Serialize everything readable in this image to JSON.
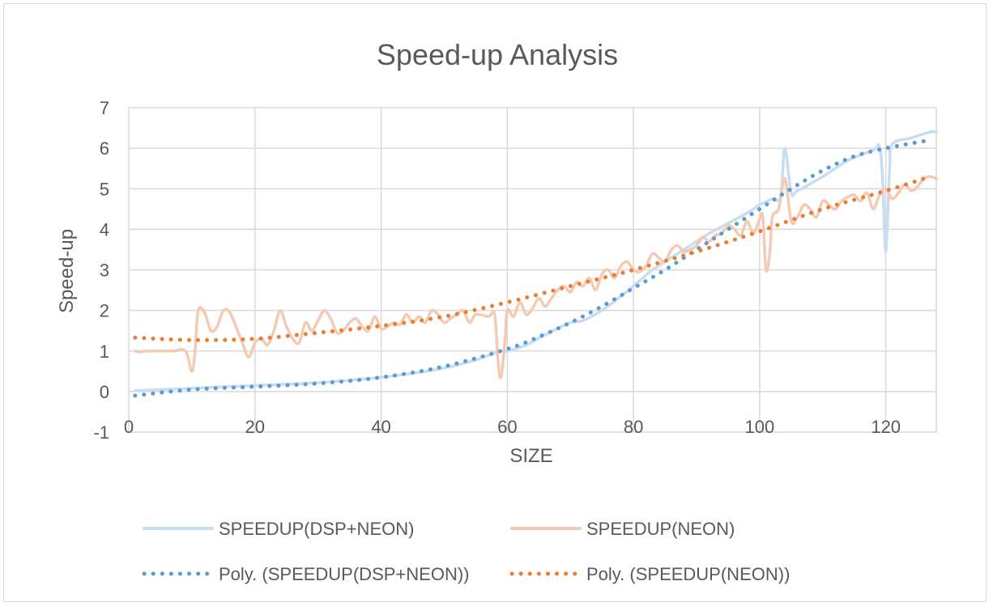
{
  "chart_data": {
    "type": "line",
    "title": "Speed-up Analysis",
    "xlabel": "SIZE",
    "ylabel": "Speed-up",
    "xlim": [
      0,
      128
    ],
    "ylim": [
      -1,
      7
    ],
    "xticks": [
      0,
      20,
      40,
      60,
      80,
      100,
      120
    ],
    "yticks": [
      -1,
      0,
      1,
      2,
      3,
      4,
      5,
      6,
      7
    ],
    "grid": true,
    "legend_position": "bottom",
    "series": [
      {
        "name": "SPEEDUP(DSP+NEON)",
        "style": "solid",
        "color": "#c9ddf0",
        "points": [
          [
            1,
            0.02
          ],
          [
            5,
            0.05
          ],
          [
            10,
            0.08
          ],
          [
            15,
            0.12
          ],
          [
            20,
            0.15
          ],
          [
            25,
            0.18
          ],
          [
            30,
            0.22
          ],
          [
            35,
            0.28
          ],
          [
            40,
            0.35
          ],
          [
            45,
            0.45
          ],
          [
            50,
            0.58
          ],
          [
            55,
            0.78
          ],
          [
            59,
            1.0
          ],
          [
            60,
            1.0
          ],
          [
            63,
            1.15
          ],
          [
            66,
            1.4
          ],
          [
            70,
            1.7
          ],
          [
            72,
            1.75
          ],
          [
            75,
            2.0
          ],
          [
            78,
            2.35
          ],
          [
            80,
            2.6
          ],
          [
            83,
            3.0
          ],
          [
            86,
            3.3
          ],
          [
            89,
            3.6
          ],
          [
            92,
            3.9
          ],
          [
            95,
            4.15
          ],
          [
            98,
            4.4
          ],
          [
            100,
            4.6
          ],
          [
            102,
            4.75
          ],
          [
            103.3,
            4.8
          ],
          [
            104,
            6.0
          ],
          [
            105,
            4.9
          ],
          [
            106,
            4.95
          ],
          [
            110,
            5.3
          ],
          [
            114,
            5.7
          ],
          [
            118,
            5.95
          ],
          [
            119,
            6.05
          ],
          [
            119.5,
            5.2
          ],
          [
            120,
            3.45
          ],
          [
            120.6,
            5.5
          ],
          [
            121,
            6.1
          ],
          [
            124,
            6.25
          ],
          [
            127,
            6.4
          ],
          [
            128,
            6.4
          ]
        ]
      },
      {
        "name": "SPEEDUP(NEON)",
        "style": "solid",
        "color": "#f3cbb3",
        "points": [
          [
            1,
            1.0
          ],
          [
            2,
            0.98
          ],
          [
            3,
            1.0
          ],
          [
            5,
            1.0
          ],
          [
            7,
            1.0
          ],
          [
            9,
            1.0
          ],
          [
            10,
            0.5
          ],
          [
            10.5,
            1.0
          ],
          [
            11,
            2.0
          ],
          [
            12,
            1.95
          ],
          [
            13,
            1.5
          ],
          [
            14,
            1.6
          ],
          [
            15,
            2.0
          ],
          [
            16,
            1.95
          ],
          [
            17,
            1.6
          ],
          [
            18,
            1.2
          ],
          [
            19,
            0.85
          ],
          [
            20,
            1.2
          ],
          [
            21,
            1.3
          ],
          [
            22,
            1.15
          ],
          [
            23,
            1.5
          ],
          [
            24,
            2.0
          ],
          [
            25,
            1.6
          ],
          [
            26,
            1.3
          ],
          [
            27,
            1.2
          ],
          [
            28,
            1.7
          ],
          [
            29,
            1.5
          ],
          [
            30,
            1.75
          ],
          [
            31,
            2.0
          ],
          [
            32,
            1.8
          ],
          [
            33,
            1.45
          ],
          [
            34,
            1.5
          ],
          [
            35,
            1.7
          ],
          [
            36,
            1.8
          ],
          [
            37,
            1.6
          ],
          [
            38,
            1.5
          ],
          [
            39,
            1.85
          ],
          [
            40,
            1.55
          ],
          [
            41,
            1.6
          ],
          [
            42,
            1.7
          ],
          [
            43,
            1.65
          ],
          [
            44,
            1.9
          ],
          [
            45,
            1.7
          ],
          [
            46,
            1.85
          ],
          [
            47,
            1.7
          ],
          [
            48,
            2.0
          ],
          [
            49,
            1.9
          ],
          [
            50,
            1.7
          ],
          [
            51,
            1.8
          ],
          [
            52,
            1.9
          ],
          [
            53,
            2.0
          ],
          [
            54,
            1.7
          ],
          [
            55,
            1.9
          ],
          [
            57,
            1.85
          ],
          [
            58,
            1.9
          ],
          [
            58.5,
            0.8
          ],
          [
            59,
            0.35
          ],
          [
            59.6,
            1.2
          ],
          [
            60,
            2.0
          ],
          [
            61,
            1.85
          ],
          [
            62,
            2.2
          ],
          [
            63,
            1.9
          ],
          [
            64,
            2.05
          ],
          [
            65,
            2.3
          ],
          [
            66,
            2.1
          ],
          [
            67,
            2.3
          ],
          [
            68,
            2.5
          ],
          [
            69,
            2.6
          ],
          [
            70,
            2.45
          ],
          [
            71,
            2.7
          ],
          [
            72,
            2.6
          ],
          [
            73,
            2.8
          ],
          [
            74,
            2.5
          ],
          [
            75,
            2.9
          ],
          [
            76,
            3.0
          ],
          [
            77,
            2.8
          ],
          [
            78,
            3.1
          ],
          [
            79,
            3.2
          ],
          [
            80,
            3.0
          ],
          [
            81,
            2.95
          ],
          [
            82,
            3.1
          ],
          [
            83,
            3.4
          ],
          [
            84,
            3.3
          ],
          [
            85,
            3.2
          ],
          [
            86,
            3.5
          ],
          [
            87,
            3.6
          ],
          [
            88,
            3.45
          ],
          [
            89,
            3.5
          ],
          [
            90,
            3.6
          ],
          [
            91,
            3.8
          ],
          [
            92,
            3.7
          ],
          [
            93,
            3.85
          ],
          [
            94,
            3.9
          ],
          [
            95,
            4.1
          ],
          [
            96,
            4.0
          ],
          [
            97,
            3.85
          ],
          [
            98,
            4.2
          ],
          [
            99,
            3.9
          ],
          [
            100,
            4.25
          ],
          [
            100.5,
            4.3
          ],
          [
            101,
            3.0
          ],
          [
            101.6,
            3.4
          ],
          [
            102,
            4.3
          ],
          [
            103,
            4.5
          ],
          [
            104,
            5.25
          ],
          [
            105,
            4.2
          ],
          [
            106,
            4.3
          ],
          [
            107,
            4.6
          ],
          [
            108,
            4.5
          ],
          [
            109,
            4.3
          ],
          [
            110,
            4.7
          ],
          [
            111,
            4.6
          ],
          [
            112,
            4.5
          ],
          [
            113,
            4.7
          ],
          [
            114,
            4.8
          ],
          [
            115,
            4.85
          ],
          [
            116,
            4.7
          ],
          [
            117,
            4.9
          ],
          [
            118,
            4.5
          ],
          [
            119,
            4.85
          ],
          [
            120,
            5.0
          ],
          [
            121,
            4.75
          ],
          [
            122,
            4.9
          ],
          [
            123,
            5.1
          ],
          [
            124,
            4.95
          ],
          [
            125,
            5.05
          ],
          [
            126,
            5.25
          ],
          [
            127,
            5.3
          ],
          [
            128,
            5.25
          ]
        ]
      },
      {
        "name": "Poly. (SPEEDUP(DSP+NEON))",
        "style": "dotted",
        "color": "#5b9bd5",
        "points": [
          [
            1,
            -0.1
          ],
          [
            10,
            0.05
          ],
          [
            20,
            0.12
          ],
          [
            30,
            0.2
          ],
          [
            40,
            0.35
          ],
          [
            50,
            0.62
          ],
          [
            60,
            1.05
          ],
          [
            65,
            1.35
          ],
          [
            70,
            1.7
          ],
          [
            75,
            2.1
          ],
          [
            80,
            2.55
          ],
          [
            85,
            3.0
          ],
          [
            90,
            3.5
          ],
          [
            95,
            4.0
          ],
          [
            100,
            4.5
          ],
          [
            105,
            5.0
          ],
          [
            110,
            5.45
          ],
          [
            115,
            5.8
          ],
          [
            120,
            6.0
          ],
          [
            127,
            6.2
          ]
        ]
      },
      {
        "name": "Poly. (SPEEDUP(NEON))",
        "style": "dotted",
        "color": "#ed7d31",
        "points": [
          [
            1,
            1.33
          ],
          [
            10,
            1.27
          ],
          [
            20,
            1.3
          ],
          [
            30,
            1.45
          ],
          [
            40,
            1.62
          ],
          [
            50,
            1.85
          ],
          [
            60,
            2.2
          ],
          [
            70,
            2.6
          ],
          [
            80,
            3.0
          ],
          [
            90,
            3.45
          ],
          [
            100,
            3.95
          ],
          [
            110,
            4.5
          ],
          [
            120,
            4.95
          ],
          [
            127,
            5.3
          ]
        ]
      }
    ]
  }
}
